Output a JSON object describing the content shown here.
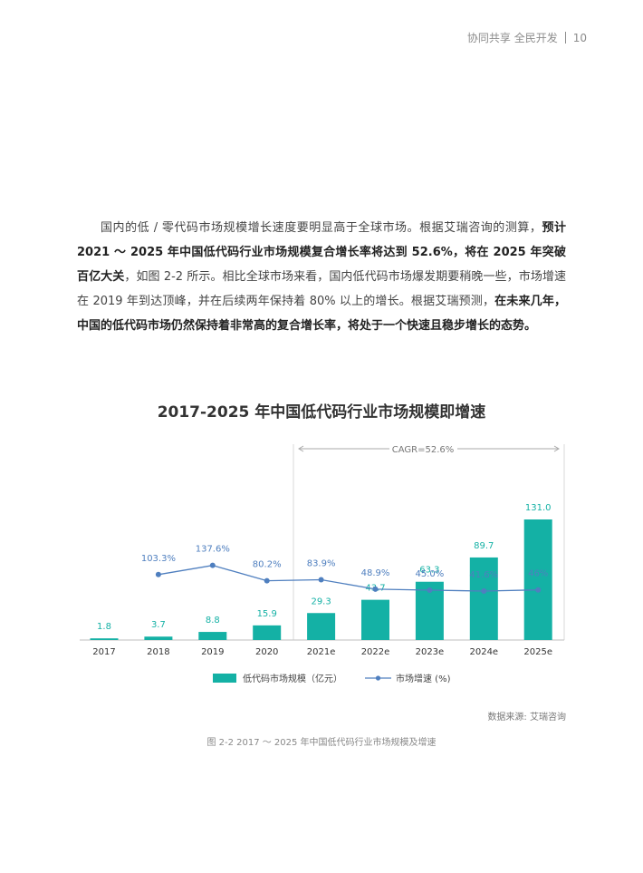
{
  "header": {
    "left": "协同共享 全民开发",
    "page_number": "10"
  },
  "paragraph": {
    "segments": [
      {
        "text": "国内的低 / 零代码市场规模增长速度要明显高于全球市场。根据艾瑞咨询的测算，",
        "bold": false
      },
      {
        "text": "预计 2021 ～ 2025 年中国低代码行业市场规模复合增长率将达到 52.6%，将在 2025 年突破百亿大关",
        "bold": true
      },
      {
        "text": "，如图 2-2 所示。相比全球市场来看，国内低代码市场爆发期要稍晚一些，市场增速在 2019 年到达顶峰，并在后续两年保持着 80% 以上的增长。根据艾瑞预测，",
        "bold": false
      },
      {
        "text": "在未来几年，中国的低代码市场仍然保持着非常高的复合增长率，将处于一个快速且稳步增长的态势。",
        "bold": true
      }
    ]
  },
  "chart_data": {
    "type": "bar",
    "title": "2017-2025 年中国低代码行业市场规模即增速",
    "categories": [
      "2017",
      "2018",
      "2019",
      "2020",
      "2021e",
      "2022e",
      "2023e",
      "2024e",
      "2025e"
    ],
    "series": [
      {
        "name": "低代码市场规模（亿元）",
        "type": "bar",
        "values": [
          1.8,
          3.7,
          8.8,
          15.9,
          29.3,
          43.7,
          63.3,
          89.7,
          131.0
        ],
        "labels": [
          "1.8",
          "3.7",
          "8.8",
          "15.9",
          "29.3",
          "43.7",
          "63.3",
          "89.7",
          "131.0"
        ]
      },
      {
        "name": "市场增速 (%)",
        "type": "line",
        "values": [
          null,
          103.3,
          137.6,
          80.2,
          83.9,
          48.9,
          45.0,
          41.6,
          46
        ],
        "labels": [
          "",
          "103.3%",
          "137.6%",
          "80.2%",
          "83.9%",
          "48.9%",
          "45.0%",
          "41.6%",
          "46%"
        ]
      }
    ],
    "annotation": "CAGR=52.6%",
    "colors": {
      "bar": "#14b1a5",
      "line": "#4f7fbf",
      "bar_label": "#14b1a5",
      "line_label": "#4f7fbf"
    },
    "legend_position": "bottom"
  },
  "source": "数据来源: 艾瑞咨询",
  "caption": "图 2-2 2017 ～ 2025 年中国低代码行业市场规模及增速"
}
